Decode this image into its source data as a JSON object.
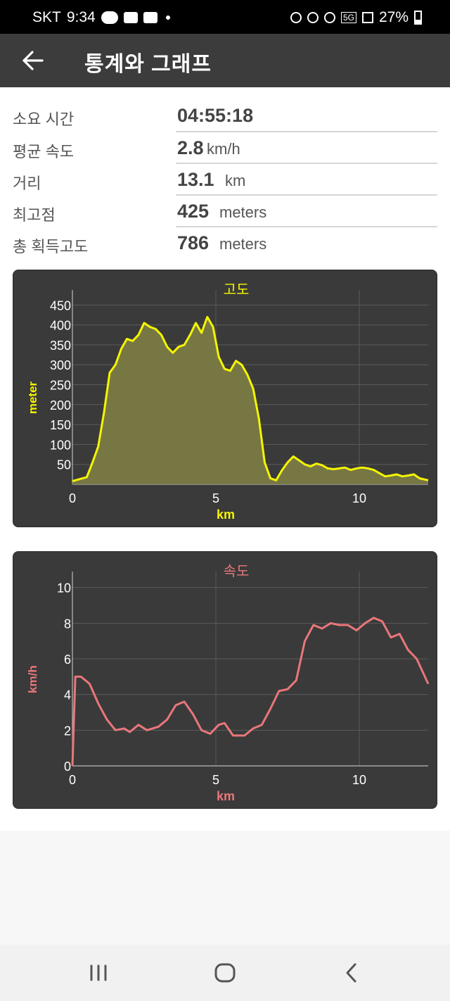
{
  "status_bar": {
    "carrier": "SKT",
    "time": "9:34",
    "band_icon_text": "BAND",
    "battery": "27%",
    "network": "5G"
  },
  "app_bar": {
    "title": "통계와 그래프",
    "back_icon": "arrow-left-icon"
  },
  "stats": [
    {
      "label": "소요 시간",
      "value": "04:55:18",
      "unit": ""
    },
    {
      "label": "평균 속도",
      "value": "2.8",
      "unit": "km/h"
    },
    {
      "label": "거리",
      "value": "13.1",
      "unit": "km"
    },
    {
      "label": "최고점",
      "value": "425",
      "unit": "meters"
    },
    {
      "label": "총 획득고도",
      "value": "786",
      "unit": "meters"
    }
  ],
  "colors": {
    "elevation": "#f5f500",
    "speed": "#e8777a",
    "card": "#3a3a3a"
  },
  "chart_data": [
    {
      "type": "area",
      "title": "고도",
      "xlabel": "km",
      "ylabel": "meter",
      "xlim": [
        0,
        12.4
      ],
      "ylim": [
        0,
        470
      ],
      "xticks": [
        0,
        5,
        10
      ],
      "yticks": [
        50,
        100,
        150,
        200,
        250,
        300,
        350,
        400,
        450
      ],
      "grid": true,
      "x": [
        0,
        0.2,
        0.5,
        0.7,
        0.9,
        1.1,
        1.3,
        1.5,
        1.7,
        1.9,
        2.1,
        2.3,
        2.5,
        2.7,
        2.9,
        3.1,
        3.3,
        3.5,
        3.7,
        3.9,
        4.1,
        4.3,
        4.5,
        4.7,
        4.9,
        5.1,
        5.3,
        5.5,
        5.7,
        5.9,
        6.1,
        6.3,
        6.5,
        6.7,
        6.9,
        7.1,
        7.3,
        7.5,
        7.7,
        7.9,
        8.1,
        8.3,
        8.5,
        8.7,
        8.9,
        9.1,
        9.3,
        9.5,
        9.7,
        9.9,
        10.1,
        10.3,
        10.5,
        10.7,
        10.9,
        11.1,
        11.3,
        11.5,
        11.7,
        11.9,
        12.1,
        12.4
      ],
      "y": [
        8,
        12,
        18,
        55,
        95,
        180,
        280,
        300,
        340,
        365,
        360,
        375,
        405,
        395,
        390,
        375,
        345,
        330,
        345,
        350,
        375,
        405,
        380,
        420,
        395,
        320,
        290,
        285,
        310,
        300,
        275,
        240,
        165,
        55,
        15,
        10,
        35,
        55,
        70,
        60,
        50,
        45,
        52,
        48,
        40,
        38,
        40,
        42,
        36,
        40,
        42,
        40,
        36,
        28,
        20,
        22,
        25,
        20,
        22,
        25,
        15,
        10
      ]
    },
    {
      "type": "line",
      "title": "속도",
      "xlabel": "km",
      "ylabel": "km/h",
      "xlim": [
        0,
        12.4
      ],
      "ylim": [
        0,
        10.5
      ],
      "xticks": [
        0,
        5,
        10
      ],
      "yticks": [
        0,
        2,
        4,
        6,
        8,
        10
      ],
      "grid": true,
      "x": [
        0,
        0.1,
        0.3,
        0.6,
        0.9,
        1.2,
        1.5,
        1.8,
        2.0,
        2.3,
        2.6,
        3.0,
        3.3,
        3.6,
        3.9,
        4.2,
        4.5,
        4.8,
        5.1,
        5.3,
        5.6,
        6.0,
        6.3,
        6.6,
        6.9,
        7.2,
        7.5,
        7.8,
        8.1,
        8.4,
        8.7,
        9.0,
        9.3,
        9.6,
        9.9,
        10.2,
        10.5,
        10.8,
        11.1,
        11.4,
        11.7,
        12.0,
        12.4
      ],
      "y": [
        0,
        5,
        5,
        4.6,
        3.5,
        2.6,
        2.0,
        2.1,
        1.9,
        2.3,
        2.0,
        2.2,
        2.6,
        3.4,
        3.6,
        2.9,
        2.0,
        1.8,
        2.3,
        2.4,
        1.7,
        1.7,
        2.1,
        2.3,
        3.2,
        4.2,
        4.3,
        4.8,
        7.0,
        7.9,
        7.7,
        8.0,
        7.9,
        7.9,
        7.6,
        8.0,
        8.3,
        8.1,
        7.2,
        7.4,
        6.5,
        6.0,
        4.6
      ]
    }
  ],
  "nav": {
    "recent_icon": "recent-apps-icon",
    "home_icon": "home-icon",
    "back_icon": "back-icon"
  }
}
